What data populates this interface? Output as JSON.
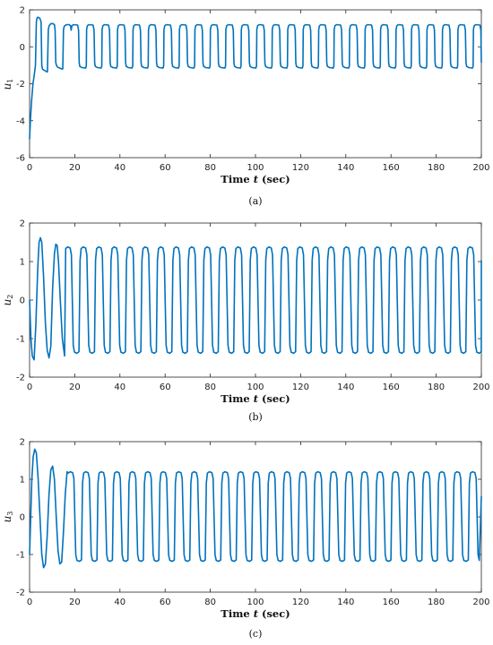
{
  "chart_data": [
    {
      "type": "line",
      "panel": "a",
      "caption": "(a)",
      "ylabel": "u1",
      "xlabel": "Time t (sec)",
      "xlim": [
        0,
        200
      ],
      "ylim": [
        -6,
        2
      ],
      "xticks": [
        0,
        20,
        40,
        60,
        80,
        100,
        120,
        140,
        160,
        180,
        200
      ],
      "yticks": [
        -6,
        -4,
        -2,
        0,
        2
      ],
      "color": "#0072BD",
      "series": [
        {
          "x": [
            0,
            0.4,
            0.9,
            1.5,
            2.1,
            2.6,
            3.0,
            3.3,
            3.6,
            4.5,
            5.1,
            5.4,
            5.7,
            6.2,
            7.0,
            7.5,
            7.9,
            8.3,
            8.7,
            9.4,
            10.4,
            11.0,
            11.3,
            11.6,
            11.9,
            12.4,
            13.3,
            14.3,
            14.7,
            15.0,
            15.3,
            15.7,
            16.4,
            17.4,
            18.1,
            18.4
          ],
          "y": [
            -5.0,
            -3.9,
            -2.9,
            -2.0,
            -1.5,
            -1.0,
            1.35,
            1.55,
            1.6,
            1.55,
            1.35,
            -1.0,
            -1.2,
            -1.25,
            -1.3,
            -1.35,
            -1.35,
            0.95,
            1.15,
            1.25,
            1.25,
            1.2,
            0.9,
            -0.85,
            -1.0,
            -1.1,
            -1.15,
            -1.2,
            -1.2,
            0.9,
            1.1,
            1.15,
            1.2,
            1.2,
            1.15,
            0.9
          ]
        }
      ],
      "periodic": {
        "start": 18.4,
        "period": 6.85,
        "high": 1.2,
        "low": -1.15,
        "end": 200
      }
    },
    {
      "type": "line",
      "panel": "b",
      "caption": "(b)",
      "ylabel": "u2",
      "xlabel": "Time t (sec)",
      "xlim": [
        0,
        200
      ],
      "ylim": [
        -2,
        2
      ],
      "xticks": [
        0,
        20,
        40,
        60,
        80,
        100,
        120,
        140,
        160,
        180,
        200
      ],
      "yticks": [
        -2,
        -1,
        0,
        1,
        2
      ],
      "color": "#0072BD",
      "series": [
        {
          "x": [
            0,
            0.6,
            1.2,
            2.0,
            2.8,
            3.6,
            4.2,
            4.8,
            5.4,
            6.2,
            7.0,
            7.8,
            8.6,
            9.4,
            10.2,
            11.0,
            11.6,
            12.2,
            12.8,
            13.6,
            14.5,
            15.5
          ],
          "y": [
            0.0,
            -1.0,
            -1.45,
            -1.55,
            -0.6,
            0.8,
            1.5,
            1.62,
            1.5,
            0.6,
            -0.6,
            -1.3,
            -1.5,
            -1.2,
            0.3,
            1.2,
            1.45,
            1.42,
            1.0,
            0.0,
            -1.0,
            -1.45
          ]
        }
      ],
      "periodic": {
        "start": 15.5,
        "period": 6.85,
        "high": 1.38,
        "low": -1.38,
        "end": 200
      }
    },
    {
      "type": "line",
      "panel": "c",
      "caption": "(c)",
      "ylabel": "u3",
      "xlabel": "Time t (sec)",
      "xlim": [
        0,
        200
      ],
      "ylim": [
        -2,
        2
      ],
      "xticks": [
        0,
        20,
        40,
        60,
        80,
        100,
        120,
        140,
        160,
        180,
        200
      ],
      "yticks": [
        -2,
        -1,
        0,
        1,
        2
      ],
      "color": "#0072BD",
      "series": [
        {
          "x": [
            0,
            0.5,
            1.0,
            1.6,
            2.3,
            3.0,
            3.8,
            4.6,
            5.4,
            6.2,
            7.0,
            7.8,
            8.6,
            9.4,
            10.2,
            11.0,
            11.8,
            12.6,
            13.4,
            14.2,
            15.0,
            15.8,
            16.6
          ],
          "y": [
            -1.0,
            0.0,
            1.0,
            1.6,
            1.8,
            1.7,
            1.0,
            0.0,
            -1.0,
            -1.35,
            -1.25,
            -0.5,
            0.6,
            1.25,
            1.35,
            1.0,
            0.0,
            -0.9,
            -1.25,
            -1.2,
            -0.4,
            0.6,
            1.2
          ]
        }
      ],
      "periodic": {
        "start": 16.6,
        "period": 6.85,
        "high": 1.2,
        "low": -1.18,
        "end": 200,
        "end_value": 0.55
      }
    }
  ],
  "panels": [
    {
      "caption": "(a)",
      "ylabel_main": "u",
      "ylabel_sub": "1",
      "xlabel_main": "Time ",
      "xlabel_var": "t",
      "xlabel_unit": " (sec)"
    },
    {
      "caption": "(b)",
      "ylabel_main": "u",
      "ylabel_sub": "2",
      "xlabel_main": "Time ",
      "xlabel_var": "t",
      "xlabel_unit": " (sec)"
    },
    {
      "caption": "(c)",
      "ylabel_main": "u",
      "ylabel_sub": "3",
      "xlabel_main": "Time ",
      "xlabel_var": "t",
      "xlabel_unit": " (sec)"
    }
  ]
}
